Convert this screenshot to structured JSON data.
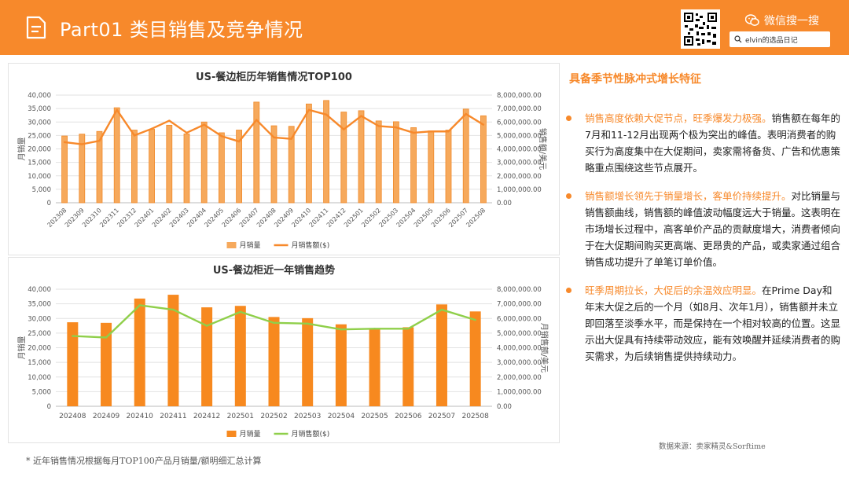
{
  "header": {
    "title": "Part01 类目销售及竞争情况",
    "wechat_label": "微信搜一搜",
    "search_value": "elvin的选品日记"
  },
  "colors": {
    "accent": "#f7892b",
    "bar": "#f6a95c",
    "bar2": "#f7891f",
    "line_top": "#f7892b",
    "line_bottom": "#8fcf4a"
  },
  "right": {
    "title": "具备季节性脉冲式增长特征",
    "bullets": [
      {
        "highlight": "销售高度依赖大促节点，旺季爆发力极强。",
        "text": "销售额在每年的7月和11-12月出现两个极为突出的峰值。表明消费者的购买行为高度集中在大促期间，卖家需将备货、广告和优惠策略重点围绕这些节点展开。"
      },
      {
        "highlight": "销售额增长领先于销量增长，客单价持续提升。",
        "text": "对比销量与销售额曲线，销售额的峰值波动幅度远大于销量。这表明在市场增长过程中，高客单价产品的贡献度增大，消费者倾向于在大促期间购买更高端、更昂贵的产品，或卖家通过组合销售成功提升了单笔订单价值。"
      },
      {
        "highlight": "旺季周期拉长，大促后的余温效应明显。",
        "text": "在Prime Day和年末大促之后的一个月（如8月、次年1月），销售额并未立即回落至淡季水平，而是保持在一个相对较高的位置。这显示出大促具有持续带动效应，能有效唤醒并延续消费者的购买需求，为后续销售提供持续动力。"
      }
    ]
  },
  "source": "数据来源：卖家精灵&Sorftime",
  "footnote": "* 近年销售情况根据每月TOP100产品月销量/额明细汇总计算",
  "chart_data": [
    {
      "type": "bar",
      "title": "US-餐边柜历年销售情况TOP100",
      "ylabel": "月销量",
      "y2label": "销售额/美元",
      "ylim": [
        0,
        40000
      ],
      "y2lim": [
        0,
        8000000
      ],
      "yticks": [
        "0",
        "5,000",
        "10,000",
        "15,000",
        "20,000",
        "25,000",
        "30,000",
        "35,000",
        "40,000"
      ],
      "y2ticks": [
        "0.00",
        "1,000,000.00",
        "2,000,000.00",
        "3,000,000.00",
        "4,000,000.00",
        "5,000,000.00",
        "6,000,000.00",
        "7,000,000.00",
        "8,000,000.00"
      ],
      "categories": [
        "202308",
        "202309",
        "202310",
        "202311",
        "202312",
        "202401",
        "202402",
        "202403",
        "202404",
        "202405",
        "202406",
        "202407",
        "202408",
        "202409",
        "202410",
        "202411",
        "202412",
        "202501",
        "202502",
        "202503",
        "202504",
        "202505",
        "202506",
        "202507",
        "202508"
      ],
      "series": [
        {
          "name": "月销量",
          "kind": "bar",
          "axis": "left",
          "values": [
            24800,
            25500,
            26500,
            35300,
            27000,
            27300,
            28800,
            25600,
            30000,
            26000,
            27000,
            37400,
            28600,
            28400,
            36700,
            38000,
            33700,
            34200,
            30400,
            30100,
            27900,
            26700,
            27000,
            34800,
            32300
          ]
        },
        {
          "name": "月销售额($)",
          "kind": "line",
          "axis": "right",
          "values": [
            4500000,
            4350000,
            4600000,
            6900000,
            5000000,
            5500000,
            6100000,
            5200000,
            5800000,
            4950000,
            4550000,
            6150000,
            4850000,
            4750000,
            6900000,
            6550000,
            5450000,
            6450000,
            5700000,
            5600000,
            5200000,
            5300000,
            5300000,
            6600000,
            5800000
          ]
        }
      ],
      "legend": "bottom"
    },
    {
      "type": "bar",
      "title": "US-餐边柜近一年销售趋势",
      "ylabel": "月销量",
      "y2label": "月销售额/美元",
      "ylim": [
        0,
        40000
      ],
      "y2lim": [
        0,
        8000000
      ],
      "yticks": [
        "0",
        "5,000",
        "10,000",
        "15,000",
        "20,000",
        "25,000",
        "30,000",
        "35,000",
        "40,000"
      ],
      "y2ticks": [
        "0.00",
        "1,000,000.00",
        "2,000,000.00",
        "3,000,000.00",
        "4,000,000.00",
        "5,000,000.00",
        "6,000,000.00",
        "7,000,000.00",
        "8,000,000.00"
      ],
      "categories": [
        "202408",
        "202409",
        "202410",
        "202411",
        "202412",
        "202501",
        "202502",
        "202503",
        "202504",
        "202505",
        "202506",
        "202507",
        "202508"
      ],
      "series": [
        {
          "name": "月销量",
          "kind": "bar",
          "axis": "left",
          "values": [
            28700,
            28500,
            36800,
            38100,
            33800,
            34300,
            30500,
            30100,
            28000,
            26700,
            27000,
            34800,
            32400
          ]
        },
        {
          "name": "月销售额($)",
          "kind": "line",
          "axis": "right",
          "values": [
            4800000,
            4700000,
            6900000,
            6600000,
            5500000,
            6450000,
            5700000,
            5650000,
            5250000,
            5300000,
            5300000,
            6600000,
            5900000
          ]
        }
      ],
      "legend": "bottom"
    }
  ]
}
